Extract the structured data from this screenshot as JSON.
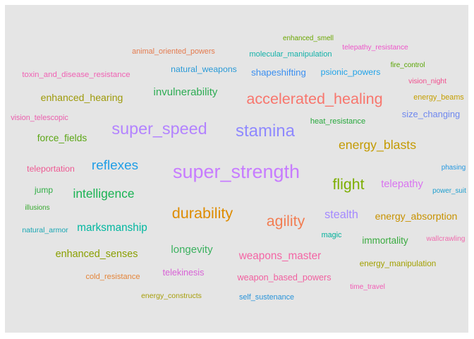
{
  "chart_data": {
    "type": "wordcloud",
    "words": [
      {
        "text": "super_strength",
        "color": "#c77cff",
        "size": 9
      },
      {
        "text": "stamina",
        "color": "#8f89ff",
        "size": 8
      },
      {
        "text": "super_speed",
        "color": "#b383ff",
        "size": 7.8
      },
      {
        "text": "accelerated_healing",
        "color": "#f8766d",
        "size": 7.2
      },
      {
        "text": "durability",
        "color": "#de8c00",
        "size": 7.2
      },
      {
        "text": "agility",
        "color": "#f27d52",
        "size": 7.1
      },
      {
        "text": "flight",
        "color": "#7cae00",
        "size": 7.1
      },
      {
        "text": "reflexes",
        "color": "#1f9ee6",
        "size": 6.3
      },
      {
        "text": "energy_blasts",
        "color": "#c49a00",
        "size": 5.9
      },
      {
        "text": "intelligence",
        "color": "#19b353",
        "size": 5.8
      },
      {
        "text": "stealth",
        "color": "#a58aff",
        "size": 5.4
      },
      {
        "text": "marksmanship",
        "color": "#00b7a0",
        "size": 5.1
      },
      {
        "text": "weapons_master",
        "color": "#f465a5",
        "size": 5.1
      },
      {
        "text": "invulnerability",
        "color": "#2eac54",
        "size": 5.0
      },
      {
        "text": "longevity",
        "color": "#3bb15f",
        "size": 5.0
      },
      {
        "text": "telepathy",
        "color": "#d974f0",
        "size": 4.9
      },
      {
        "text": "enhanced_senses",
        "color": "#8a9f00",
        "size": 4.8
      },
      {
        "text": "energy_absorption",
        "color": "#c89200",
        "size": 4.7
      },
      {
        "text": "enhanced_hearing",
        "color": "#9e9a0a",
        "size": 4.7
      },
      {
        "text": "force_fields",
        "color": "#5ca616",
        "size": 4.6
      },
      {
        "text": "immortality",
        "color": "#3aab40",
        "size": 4.5
      },
      {
        "text": "shapeshifting",
        "color": "#3b8ff0",
        "size": 4.4
      },
      {
        "text": "size_changing",
        "color": "#6f88ef",
        "size": 4.3
      },
      {
        "text": "telekinesis",
        "color": "#d863d6",
        "size": 4.2
      },
      {
        "text": "weapon_based_powers",
        "color": "#f15f9f",
        "size": 4.2
      },
      {
        "text": "natural_weapons",
        "color": "#2a9ad7",
        "size": 4.1
      },
      {
        "text": "psionic_powers",
        "color": "#21a3e8",
        "size": 4.1
      },
      {
        "text": "teleportation",
        "color": "#ee5a93",
        "size": 4.1
      },
      {
        "text": "jump",
        "color": "#30ad45",
        "size": 4.0
      },
      {
        "text": "energy_manipulation",
        "color": "#a2a000",
        "size": 3.9
      },
      {
        "text": "heat_resistance",
        "color": "#28a83d",
        "size": 3.7
      },
      {
        "text": "molecular_manipulation",
        "color": "#13b1a9",
        "size": 3.7
      },
      {
        "text": "toxin_and_disease_resistance",
        "color": "#f062b4",
        "size": 3.8
      },
      {
        "text": "cold_resistance",
        "color": "#e4853a",
        "size": 3.7
      },
      {
        "text": "energy_beams",
        "color": "#c59f00",
        "size": 3.6
      },
      {
        "text": "self_sustenance",
        "color": "#2893d9",
        "size": 3.6
      },
      {
        "text": "animal_oriented_powers",
        "color": "#e47b4f",
        "size": 3.6
      },
      {
        "text": "vision_telescopic",
        "color": "#ea5fad",
        "size": 3.6
      },
      {
        "text": "magic",
        "color": "#00b09a",
        "size": 3.6
      },
      {
        "text": "natural_armor",
        "color": "#18a6b3",
        "size": 3.5
      },
      {
        "text": "energy_constructs",
        "color": "#a69d08",
        "size": 3.5
      },
      {
        "text": "time_travel",
        "color": "#f25cb5",
        "size": 3.4
      },
      {
        "text": "wallcrawling",
        "color": "#ef6bad",
        "size": 3.4
      },
      {
        "text": "vision_night",
        "color": "#f14d8d",
        "size": 3.4
      },
      {
        "text": "telepathy_resistance",
        "color": "#ed55c9",
        "size": 3.4
      },
      {
        "text": "enhanced_smell",
        "color": "#6aa600",
        "size": 3.3
      },
      {
        "text": "fire_control",
        "color": "#58a400",
        "size": 3.3
      },
      {
        "text": "illusions",
        "color": "#36a92e",
        "size": 3.3
      },
      {
        "text": "phasing",
        "color": "#2598e0",
        "size": 3.3
      },
      {
        "text": "power_suit",
        "color": "#1f9fcf",
        "size": 3.3
      }
    ]
  }
}
